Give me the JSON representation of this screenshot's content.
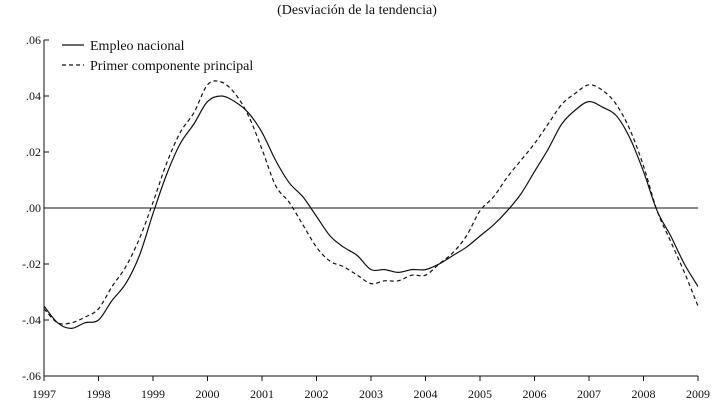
{
  "chart_data": {
    "type": "line",
    "title": "(Desviación de la tendencia)",
    "xlabel": "",
    "ylabel": "",
    "xlim": [
      1997,
      2009
    ],
    "ylim": [
      -0.06,
      0.06
    ],
    "x_ticks": [
      1997,
      1998,
      1999,
      2000,
      2001,
      2002,
      2003,
      2004,
      2005,
      2006,
      2007,
      2008,
      2009
    ],
    "x_tick_labels": [
      "1997",
      "1998",
      "1999",
      "2000",
      "2001",
      "2002",
      "2003",
      "2004",
      "2005",
      "2006",
      "2007",
      "2008",
      "2009"
    ],
    "y_ticks": [
      -0.06,
      -0.04,
      -0.02,
      0.0,
      0.02,
      0.04,
      0.06
    ],
    "y_tick_labels": [
      "-.06",
      "-.04",
      "-.02",
      ".00",
      ".02",
      ".04",
      ".06"
    ],
    "zero_line": true,
    "grid": false,
    "legend": "top-left",
    "series": [
      {
        "name": "Empleo nacional",
        "style": "solid",
        "color": "#111111",
        "x": [
          1997.0,
          1997.25,
          1997.5,
          1997.75,
          1998.0,
          1998.25,
          1998.5,
          1998.75,
          1999.0,
          1999.25,
          1999.5,
          1999.75,
          2000.0,
          2000.25,
          2000.5,
          2000.75,
          2001.0,
          2001.25,
          2001.5,
          2001.75,
          2002.0,
          2002.25,
          2002.5,
          2002.75,
          2003.0,
          2003.25,
          2003.5,
          2003.75,
          2004.0,
          2004.25,
          2004.5,
          2004.75,
          2005.0,
          2005.25,
          2005.5,
          2005.75,
          2006.0,
          2006.25,
          2006.5,
          2006.75,
          2007.0,
          2007.25,
          2007.5,
          2007.75,
          2008.0,
          2008.25,
          2008.5,
          2008.75,
          2009.0
        ],
        "values": [
          -0.035,
          -0.041,
          -0.043,
          -0.041,
          -0.04,
          -0.033,
          -0.027,
          -0.017,
          -0.002,
          0.012,
          0.023,
          0.03,
          0.038,
          0.04,
          0.038,
          0.034,
          0.027,
          0.017,
          0.009,
          0.004,
          -0.003,
          -0.01,
          -0.014,
          -0.017,
          -0.022,
          -0.022,
          -0.023,
          -0.022,
          -0.022,
          -0.02,
          -0.017,
          -0.014,
          -0.01,
          -0.006,
          -0.001,
          0.005,
          0.013,
          0.021,
          0.03,
          0.035,
          0.038,
          0.036,
          0.033,
          0.025,
          0.013,
          -0.001,
          -0.01,
          -0.02,
          -0.028
        ]
      },
      {
        "name": "Primer componente principal",
        "style": "dashed",
        "color": "#111111",
        "x": [
          1997.0,
          1997.25,
          1997.5,
          1997.75,
          1998.0,
          1998.25,
          1998.5,
          1998.75,
          1999.0,
          1999.25,
          1999.5,
          1999.75,
          2000.0,
          2000.25,
          2000.5,
          2000.75,
          2001.0,
          2001.25,
          2001.5,
          2001.75,
          2002.0,
          2002.25,
          2002.5,
          2002.75,
          2003.0,
          2003.25,
          2003.5,
          2003.75,
          2004.0,
          2004.25,
          2004.5,
          2004.75,
          2005.0,
          2005.25,
          2005.5,
          2005.75,
          2006.0,
          2006.25,
          2006.5,
          2006.75,
          2007.0,
          2007.25,
          2007.5,
          2007.75,
          2008.0,
          2008.25,
          2008.5,
          2008.75,
          2009.0
        ],
        "values": [
          -0.036,
          -0.041,
          -0.041,
          -0.039,
          -0.036,
          -0.028,
          -0.021,
          -0.011,
          0.002,
          0.016,
          0.027,
          0.034,
          0.044,
          0.045,
          0.041,
          0.033,
          0.021,
          0.008,
          0.002,
          -0.006,
          -0.014,
          -0.019,
          -0.021,
          -0.024,
          -0.027,
          -0.026,
          -0.026,
          -0.024,
          -0.024,
          -0.02,
          -0.016,
          -0.01,
          -0.001,
          0.004,
          0.011,
          0.017,
          0.023,
          0.03,
          0.037,
          0.041,
          0.044,
          0.042,
          0.037,
          0.028,
          0.015,
          -0.001,
          -0.012,
          -0.023,
          -0.035
        ]
      }
    ]
  }
}
